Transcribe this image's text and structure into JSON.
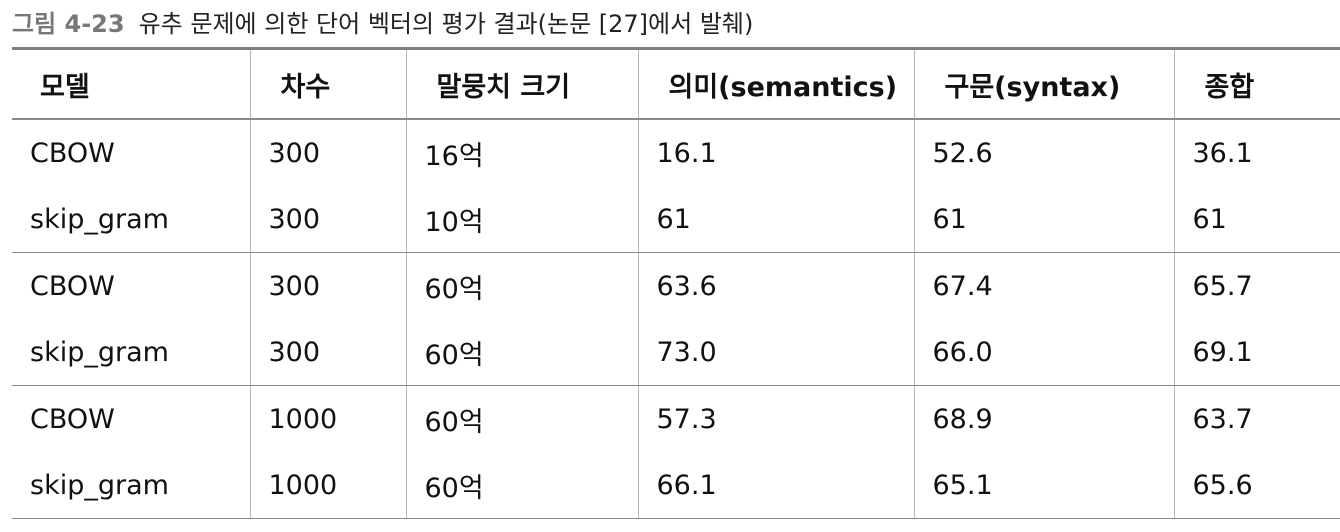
{
  "caption": {
    "label": "그림 4-23",
    "text": "유추 문제에 의한 단어 벡터의 평가 결과(논문 [27]에서 발췌)"
  },
  "table": {
    "headers": [
      "모델",
      "차수",
      "말뭉치 크기",
      "의미(semantics)",
      "구문(syntax)",
      "종합"
    ],
    "rows": [
      [
        "CBOW",
        "300",
        "16억",
        "16.1",
        "52.6",
        "36.1"
      ],
      [
        "skip_gram",
        "300",
        "10억",
        "61",
        "61",
        "61"
      ],
      [
        "CBOW",
        "300",
        "60억",
        "63.6",
        "67.4",
        "65.7"
      ],
      [
        "skip_gram",
        "300",
        "60억",
        "73.0",
        "66.0",
        "69.1"
      ],
      [
        "CBOW",
        "1000",
        "60억",
        "57.3",
        "68.9",
        "63.7"
      ],
      [
        "skip_gram",
        "1000",
        "60억",
        "66.1",
        "65.1",
        "65.6"
      ]
    ]
  },
  "colors": {
    "caption_label": "#777777",
    "rules": "#8a8a8a"
  }
}
